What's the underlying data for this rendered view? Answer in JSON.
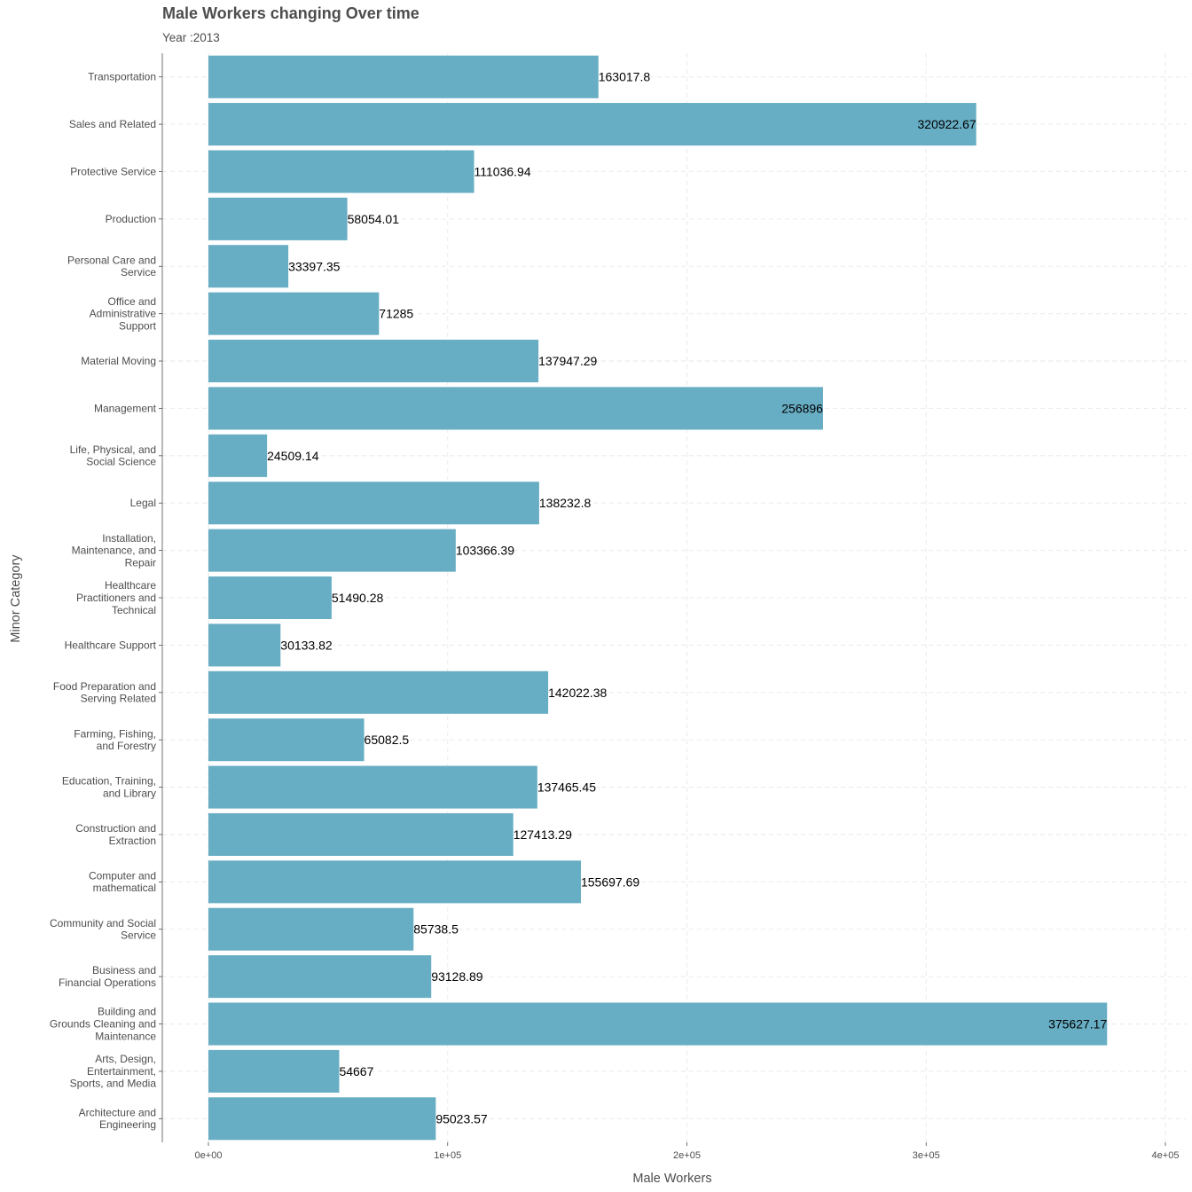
{
  "chart_data": {
    "type": "bar",
    "orientation": "horizontal",
    "title": "Male Workers changing Over time",
    "subtitle": "Year :2013",
    "xlabel": "Male Workers",
    "ylabel": "Minor Category",
    "xlim": [
      0,
      400000
    ],
    "x_ticks": [
      0,
      100000,
      200000,
      300000,
      400000
    ],
    "x_tick_labels": [
      "0e+00",
      "1e+05",
      "2e+05",
      "3e+05",
      "4e+05"
    ],
    "grid": "major, dashed",
    "bar_color": "#67adc4",
    "categories": [
      "Transportation",
      "Sales and Related",
      "Protective Service",
      "Production",
      "Personal Care and\nService",
      "Office and\nAdministrative\nSupport",
      "Material Moving",
      "Management",
      "Life, Physical, and\nSocial Science",
      "Legal",
      "Installation,\nMaintenance, and\nRepair",
      "Healthcare\nPractitioners and\nTechnical",
      "Healthcare Support",
      "Food Preparation and\nServing Related",
      "Farming, Fishing,\nand Forestry",
      "Education, Training,\nand Library",
      "Construction and\nExtraction",
      "Computer and\nmathematical",
      "Community and Social\nService",
      "Business and\nFinancial Operations",
      "Building and\nGrounds Cleaning and\nMaintenance",
      "Arts, Design,\nEntertainment,\nSports, and Media",
      "Architecture and\nEngineering"
    ],
    "values": [
      163017.8,
      320922.67,
      111036.94,
      58054.01,
      33397.35,
      71285,
      137947.29,
      256896,
      24509.14,
      138232.8,
      103366.39,
      51490.28,
      30133.82,
      142022.38,
      65082.5,
      137465.45,
      127413.29,
      155697.69,
      85738.5,
      93128.89,
      375627.17,
      54667,
      95023.57
    ],
    "data_labels": [
      "163017.8",
      "320922.67",
      "111036.94",
      "58054.01",
      "33397.35",
      "71285",
      "137947.29",
      "256896",
      "24509.14",
      "138232.8",
      "103366.39",
      "51490.28",
      "30133.82",
      "142022.38",
      "65082.5",
      "137465.45",
      "127413.29",
      "155697.69",
      "85738.5",
      "93128.89",
      "375627.17",
      "54667",
      "95023.57"
    ]
  }
}
